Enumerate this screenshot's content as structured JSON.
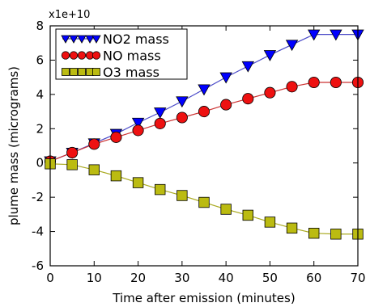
{
  "chart_data": {
    "type": "line",
    "title": "",
    "xlabel": "Time after emission (minutes)",
    "ylabel": "plume mass (micrograms)",
    "y_scale_label": "x1e+10",
    "y_scale_factor": 10000000000,
    "xlim": [
      0,
      70
    ],
    "ylim": [
      -6,
      8
    ],
    "x_ticks": [
      0,
      10,
      20,
      30,
      40,
      50,
      60,
      70
    ],
    "y_ticks": [
      -6,
      -4,
      -2,
      0,
      2,
      4,
      6,
      8
    ],
    "grid": false,
    "legend_position": "top-left",
    "x": [
      0,
      5,
      10,
      15,
      20,
      25,
      30,
      35,
      40,
      45,
      50,
      55,
      60,
      65,
      70
    ],
    "series": [
      {
        "name": "NO2 mass",
        "marker": "triangle-down",
        "color": "#0000ff",
        "line_color": "#4a4ac8",
        "values": [
          0.1,
          0.6,
          1.15,
          1.7,
          2.35,
          2.95,
          3.6,
          4.3,
          5.0,
          5.65,
          6.3,
          6.9,
          7.5,
          7.5,
          7.5
        ]
      },
      {
        "name": "NO mass",
        "marker": "circle",
        "color": "#ee1111",
        "line_color": "#cc3333",
        "values": [
          0.1,
          0.6,
          1.1,
          1.5,
          1.9,
          2.3,
          2.65,
          3.0,
          3.4,
          3.75,
          4.1,
          4.45,
          4.7,
          4.7,
          4.7
        ]
      },
      {
        "name": "O3 mass",
        "marker": "square",
        "color": "#bbbb11",
        "line_color": "#aaaa22",
        "values": [
          -0.05,
          -0.1,
          -0.4,
          -0.75,
          -1.15,
          -1.55,
          -1.9,
          -2.3,
          -2.7,
          -3.05,
          -3.45,
          -3.8,
          -4.1,
          -4.15,
          -4.15
        ]
      }
    ]
  }
}
